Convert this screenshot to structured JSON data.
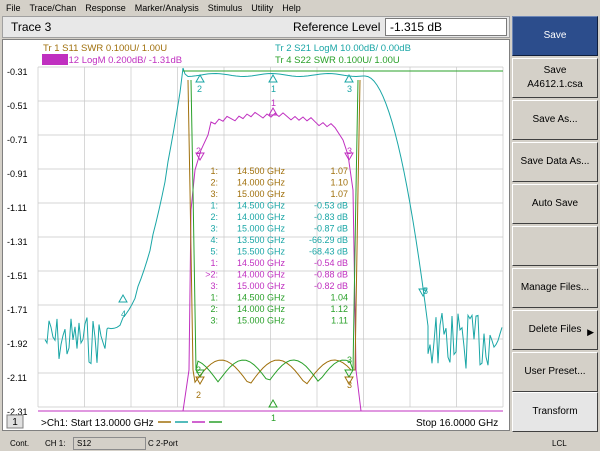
{
  "menu": [
    "File",
    "Trace/Chan",
    "Response",
    "Marker/Analysis",
    "Stimulus",
    "Utility",
    "Help"
  ],
  "active_trace_title": "Trace 3",
  "reference_level": {
    "label": "Reference Level",
    "value": "-1.315 dB"
  },
  "traces": [
    {
      "text": "Tr 1  S11 SWR 0.100U/  1.00U",
      "color": "#a0700c"
    },
    {
      "text": "Tr 2  S21 LogM 10.00dB/  0.00dB",
      "color": "#1aa6a6"
    },
    {
      "text": "Tr 3  S12 LogM 0.200dB/  -1.31dB",
      "color": "#c030c0"
    },
    {
      "text": "Tr 4  S22 SWR 0.100U/  1.00U",
      "color": "#2aa02a"
    }
  ],
  "y_ticks": [
    "-0.31",
    "-0.51",
    "-0.71",
    "-0.91",
    "-1.11",
    "-1.31",
    "-1.51",
    "-1.71",
    "-1.92",
    "-2.11",
    "-2.31"
  ],
  "markers": [
    {
      "num": "1:",
      "freq": "14.500 GHz",
      "val": "1.07",
      "color": "#a0700c"
    },
    {
      "num": "2:",
      "freq": "14.000 GHz",
      "val": "1.10",
      "color": "#a0700c"
    },
    {
      "num": "3:",
      "freq": "15.000 GHz",
      "val": "1.07",
      "color": "#a0700c"
    },
    {
      "num": "1:",
      "freq": "14.500 GHz",
      "val": "-0.53 dB",
      "color": "#1aa6a6"
    },
    {
      "num": "2:",
      "freq": "14.000 GHz",
      "val": "-0.83 dB",
      "color": "#1aa6a6"
    },
    {
      "num": "3:",
      "freq": "15.000 GHz",
      "val": "-0.87 dB",
      "color": "#1aa6a6"
    },
    {
      "num": "4:",
      "freq": "13.500 GHz",
      "val": "-66.29 dB",
      "color": "#1aa6a6"
    },
    {
      "num": "5:",
      "freq": "15.500 GHz",
      "val": "-68.43 dB",
      "color": "#1aa6a6"
    },
    {
      "num": "1:",
      "freq": "14.500 GHz",
      "val": "-0.54 dB",
      "color": "#c030c0"
    },
    {
      "num": ">2:",
      "freq": "14.000 GHz",
      "val": "-0.88 dB",
      "color": "#c030c0"
    },
    {
      "num": "3:",
      "freq": "15.000 GHz",
      "val": "-0.82 dB",
      "color": "#c030c0"
    },
    {
      "num": "1:",
      "freq": "14.500 GHz",
      "val": "1.04",
      "color": "#2aa02a"
    },
    {
      "num": "2:",
      "freq": "14.000 GHz",
      "val": "1.12",
      "color": "#2aa02a"
    },
    {
      "num": "3:",
      "freq": "15.000 GHz",
      "val": "1.11",
      "color": "#2aa02a"
    }
  ],
  "channel_box": "1",
  "start_text": ">Ch1: Start  13.0000 GHz",
  "stop_text": "Stop  16.0000 GHz",
  "softkeys": [
    {
      "label": "Save",
      "active": true
    },
    {
      "label": "Save\nA4612.1.csa",
      "active": false
    },
    {
      "label": "Save As...",
      "active": false
    },
    {
      "label": "Save Data As...",
      "active": false
    },
    {
      "label": "Auto Save",
      "active": false
    },
    {
      "label": "",
      "active": false
    },
    {
      "label": "Manage Files...",
      "active": false
    },
    {
      "label": "Delete Files",
      "active": false,
      "arrow": true
    },
    {
      "label": "User Preset...",
      "active": false
    },
    {
      "label": "Transform",
      "active": false
    }
  ],
  "status": {
    "mode": "Cont.",
    "ch": "CH 1:",
    "param": "S12",
    "ports": "C  2-Port",
    "lcl": "LCL"
  }
}
